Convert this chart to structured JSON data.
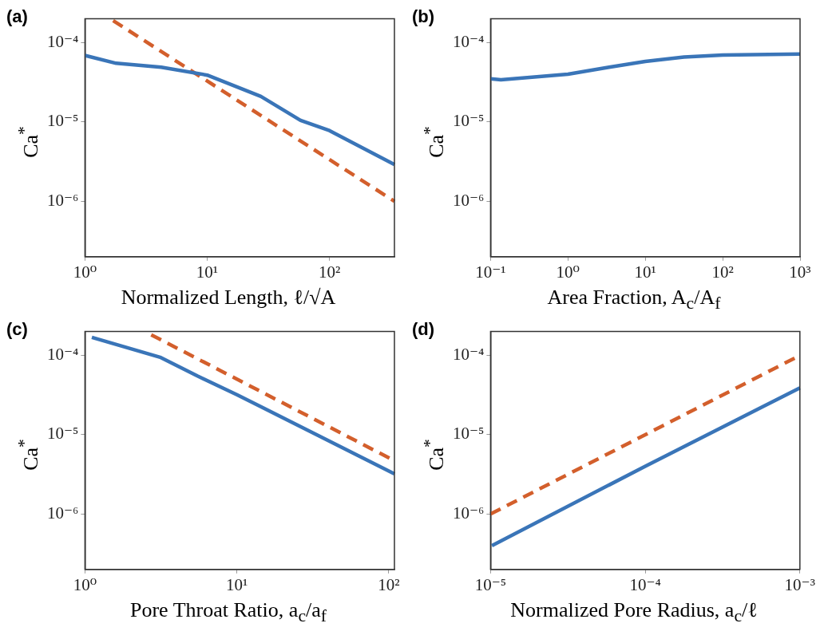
{
  "chart_data": [
    {
      "type": "line",
      "title": "(a)",
      "xlabel": "Normalized Length, ℓ/√A",
      "ylabel": "Ca$^{*}$",
      "log": "xy",
      "xlim": [
        1,
        340
      ],
      "ylim": [
        2e-07,
        0.0002
      ],
      "xticks": [
        {
          "value": 1,
          "label": "10⁰"
        },
        {
          "value": 10,
          "label": "10¹"
        },
        {
          "value": 100,
          "label": "10²"
        }
      ],
      "yticks": [
        {
          "value": 1e-06,
          "label": "10⁻⁶"
        },
        {
          "value": 1e-05,
          "label": "10⁻⁵"
        },
        {
          "value": 0.0001,
          "label": "10⁻⁴"
        }
      ],
      "series": [
        {
          "color": "#3a75b8",
          "line_style": "solid",
          "x": [
            1,
            1.8,
            4.2,
            10,
            27.5,
            58,
            100,
            340
          ],
          "values": [
            6.9e-05,
            5.5e-05,
            4.9e-05,
            3.9e-05,
            2.1e-05,
            1.05e-05,
            7.8e-06,
            2.9e-06
          ]
        },
        {
          "color": "#d35f2c",
          "line_style": "dashed",
          "x": [
            1.7,
            340
          ],
          "values": [
            0.00019,
            1e-06
          ]
        }
      ]
    },
    {
      "type": "line",
      "title": "(b)",
      "xlabel": "Area Fraction, A$_{c}$/A$_{f}$",
      "ylabel": "Ca$^{*}$",
      "log": "xy",
      "xlim": [
        0.1,
        1000
      ],
      "ylim": [
        2e-07,
        0.0002
      ],
      "xticks": [
        {
          "value": 0.1,
          "label": "10⁻¹"
        },
        {
          "value": 1,
          "label": "10⁰"
        },
        {
          "value": 10,
          "label": "10¹"
        },
        {
          "value": 100,
          "label": "10²"
        },
        {
          "value": 1000,
          "label": "10³"
        }
      ],
      "yticks": [
        {
          "value": 1e-06,
          "label": "10⁻⁶"
        },
        {
          "value": 1e-05,
          "label": "10⁻⁵"
        },
        {
          "value": 0.0001,
          "label": "10⁻⁴"
        }
      ],
      "series": [
        {
          "color": "#3a75b8",
          "line_style": "solid",
          "x": [
            0.1,
            0.136,
            1,
            3.4,
            10,
            31.6,
            100,
            1000
          ],
          "values": [
            3.5e-05,
            3.4e-05,
            4e-05,
            4.9e-05,
            5.8e-05,
            6.6e-05,
            7e-05,
            7.2e-05
          ]
        }
      ]
    },
    {
      "type": "line",
      "title": "(c)",
      "xlabel": "Pore Throat Ratio, a$_{c}$/a$_{f}$",
      "ylabel": "Ca$^{*}$",
      "log": "xy",
      "xlim": [
        1,
        109
      ],
      "ylim": [
        2e-07,
        0.0002
      ],
      "xticks": [
        {
          "value": 1,
          "label": "10⁰"
        },
        {
          "value": 10,
          "label": "10¹"
        },
        {
          "value": 100,
          "label": "10²"
        }
      ],
      "yticks": [
        {
          "value": 1e-06,
          "label": "10⁻⁶"
        },
        {
          "value": 1e-05,
          "label": "10⁻⁵"
        },
        {
          "value": 0.0001,
          "label": "10⁻⁴"
        }
      ],
      "series": [
        {
          "color": "#3a75b8",
          "line_style": "solid",
          "x": [
            1.11,
            3.16,
            5.5,
            10,
            31.6,
            109
          ],
          "values": [
            0.000169,
            9.4e-05,
            5.5e-05,
            3.2e-05,
            1.06e-05,
            3.2e-06
          ]
        },
        {
          "color": "#d35f2c",
          "line_style": "dashed",
          "x": [
            2.73,
            109
          ],
          "values": [
            0.000182,
            4.7e-06
          ]
        }
      ]
    },
    {
      "type": "line",
      "title": "(d)",
      "xlabel": "Normalized Pore Radius, a$_{c}$/ℓ",
      "ylabel": "Ca$^{*}$",
      "log": "xy",
      "xlim": [
        1e-05,
        0.001
      ],
      "ylim": [
        2e-07,
        0.0002
      ],
      "xticks": [
        {
          "value": 1e-05,
          "label": "10⁻⁵"
        },
        {
          "value": 0.0001,
          "label": "10⁻⁴"
        },
        {
          "value": 0.001,
          "label": "10⁻³"
        }
      ],
      "yticks": [
        {
          "value": 1e-06,
          "label": "10⁻⁶"
        },
        {
          "value": 1e-05,
          "label": "10⁻⁵"
        },
        {
          "value": 0.0001,
          "label": "10⁻⁴"
        }
      ],
      "series": [
        {
          "color": "#3a75b8",
          "line_style": "solid",
          "x": [
            1.02e-05,
            0.0001,
            0.001
          ],
          "values": [
            4e-07,
            4e-06,
            3.9e-05
          ]
        },
        {
          "color": "#d35f2c",
          "line_style": "dashed",
          "x": [
            1e-05,
            0.001
          ],
          "values": [
            1e-06,
            0.0001
          ]
        }
      ]
    }
  ]
}
